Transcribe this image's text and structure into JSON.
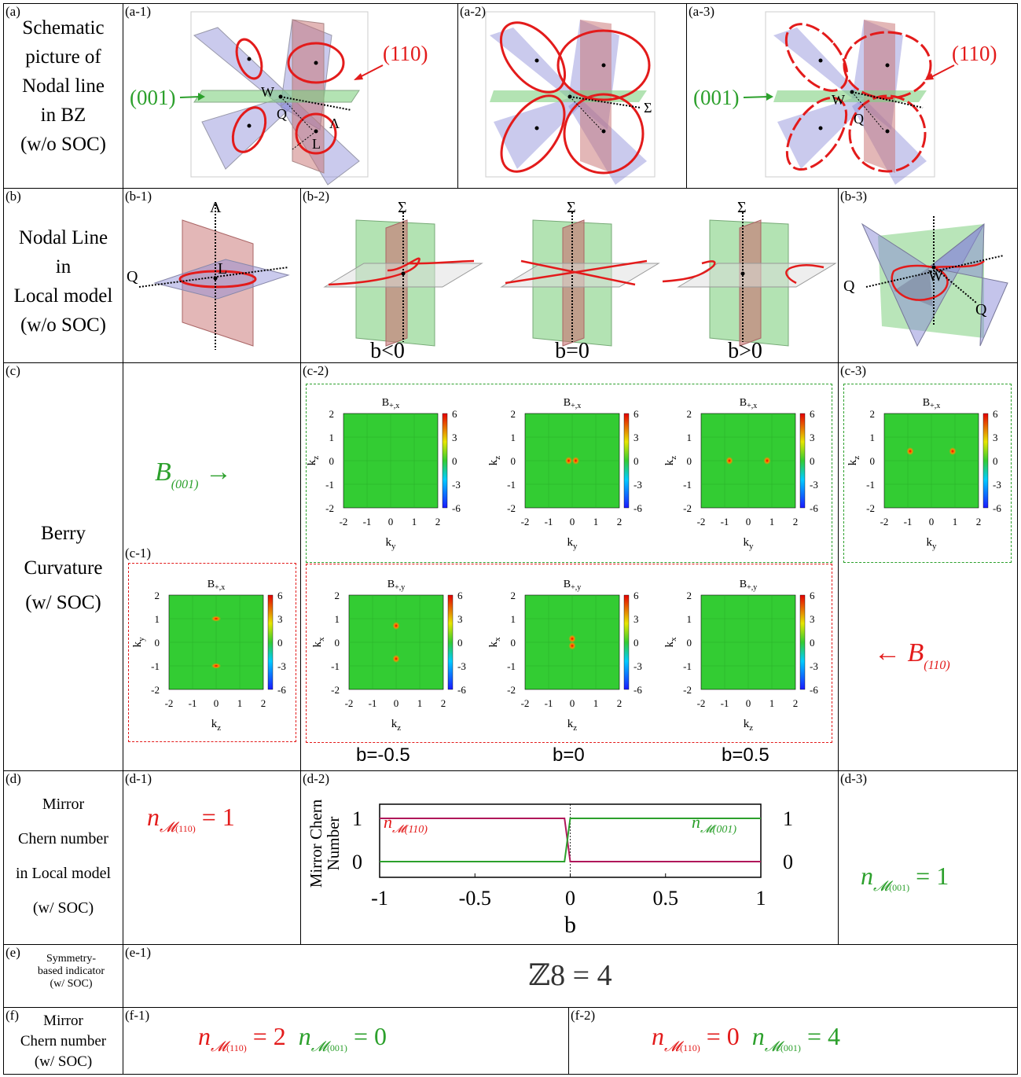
{
  "rows": {
    "a": {
      "label": "(a)",
      "title": [
        "Schematic",
        "picture of",
        "Nodal line",
        "in BZ",
        "(w/o SOC)"
      ],
      "panels": [
        "(a-1)",
        "(a-2)",
        "(a-3)"
      ],
      "annot": {
        "p110": "(110)",
        "p001": "(001)",
        "W": "W",
        "Q": "Q",
        "L": "L",
        "Lambda": "Λ",
        "Sigma": "Σ"
      }
    },
    "b": {
      "label": "(b)",
      "title": [
        "Nodal Line",
        "in",
        "Local model",
        "(w/o SOC)"
      ],
      "panels": [
        "(b-1)",
        "(b-2)",
        "(b-3)"
      ],
      "conds": [
        "b<0",
        "b=0",
        "b>0"
      ],
      "annot": {
        "Lambda": "Λ",
        "Q": "Q",
        "L": "L",
        "Sigma": "Σ",
        "W": "W"
      }
    },
    "c": {
      "label": "(c)",
      "title": [
        "Berry",
        "Curvature",
        "(w/ SOC)"
      ],
      "panels": [
        "(c-1)",
        "(c-2)",
        "(c-3)"
      ],
      "arrow_left": "B(001) →",
      "arrow_right": "← B(110)",
      "bvals": [
        "b=-0.5",
        "b=0",
        "b=0.5"
      ]
    },
    "d": {
      "label": "(d)",
      "title": [
        "Mirror",
        "Chern number",
        "in Local model",
        "(w/ SOC)"
      ],
      "panels": [
        "(d-1)",
        "(d-2)",
        "(d-3)"
      ],
      "left_eq": "n_M(110) = 1",
      "right_eq": "n_M(001) = 1"
    },
    "e": {
      "label": "(e)",
      "title": [
        "Symmetry-",
        "based indicator",
        "(w/ SOC)"
      ],
      "panels": [
        "(e-1)"
      ],
      "value": "ℤ8 = 4"
    },
    "f": {
      "label": "(f)",
      "title": [
        "Mirror",
        "Chern number",
        "(w/ SOC)"
      ],
      "panels": [
        "(f-1)",
        "(f-2)"
      ]
    }
  },
  "heatmaps": {
    "colorbar_ticks": [
      "6",
      "3",
      "0",
      "-3",
      "-6"
    ],
    "axis_ticks": [
      "-2",
      "-1",
      "0",
      "1",
      "2"
    ],
    "plots": [
      {
        "id": "c2-top-1",
        "title": "B+,x",
        "xlab": "ky",
        "ylab": "kz",
        "spots": []
      },
      {
        "id": "c2-top-2",
        "title": "B+,x",
        "xlab": "ky",
        "ylab": "kz",
        "spots": [
          [
            -0.15,
            0
          ],
          [
            0.15,
            0
          ]
        ]
      },
      {
        "id": "c2-top-3",
        "title": "B+,x",
        "xlab": "ky",
        "ylab": "kz",
        "spots": [
          [
            -0.8,
            0
          ],
          [
            0.8,
            0
          ]
        ]
      },
      {
        "id": "c3",
        "title": "B+,x",
        "xlab": "ky",
        "ylab": "kz",
        "spots": [
          [
            -0.9,
            0.4
          ],
          [
            0.9,
            0.4
          ]
        ]
      },
      {
        "id": "c1",
        "title": "B+,x",
        "xlab": "kz",
        "ylab": "ky",
        "spots": [
          [
            0,
            1
          ],
          [
            0,
            -1
          ]
        ]
      },
      {
        "id": "c2-bot-1",
        "title": "B+,y",
        "xlab": "kz",
        "ylab": "kx",
        "spots": [
          [
            0,
            0.7
          ],
          [
            0,
            -0.7
          ]
        ]
      },
      {
        "id": "c2-bot-2",
        "title": "B+,y",
        "xlab": "kz",
        "ylab": "kx",
        "spots": [
          [
            0,
            0.15
          ],
          [
            0,
            -0.15
          ]
        ]
      },
      {
        "id": "c2-bot-3",
        "title": "B+,y",
        "xlab": "kz",
        "ylab": "kx",
        "spots": []
      }
    ]
  },
  "chart_data": {
    "type": "line",
    "title": "",
    "xlabel": "b",
    "ylabel": "Mirror Chern Number",
    "xlim": [
      -1,
      1
    ],
    "ylim": [
      0,
      1
    ],
    "xticks": [
      "-1",
      "-0.5",
      "0",
      "0.5",
      "1"
    ],
    "yticks_left": [
      "1",
      "0"
    ],
    "yticks_right": [
      "1",
      "0"
    ],
    "series": [
      {
        "name": "n_M(110)",
        "color": "#b0175a",
        "x": [
          -1,
          -0.03,
          0,
          1
        ],
        "values": [
          1,
          1,
          0,
          0
        ]
      },
      {
        "name": "n_M(001)",
        "color": "#2ca02c",
        "x": [
          -1,
          -0.03,
          0,
          1
        ],
        "values": [
          0,
          0,
          1,
          1
        ]
      }
    ]
  }
}
